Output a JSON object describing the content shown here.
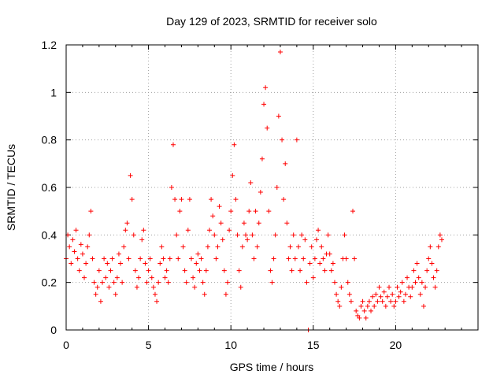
{
  "chart_data": {
    "type": "scatter",
    "title": "Day 129 of 2023, SRMTID for receiver solo",
    "xlabel": "GPS time / hours",
    "ylabel": "SRMTID / TECUs",
    "xlim": [
      0,
      25
    ],
    "ylim": [
      0,
      1.2
    ],
    "xticks": [
      0,
      5,
      10,
      15,
      20
    ],
    "xtick_labels": [
      "0",
      "5",
      "10",
      "15",
      "20"
    ],
    "yticks": [
      0,
      0.2,
      0.4,
      0.6,
      0.8,
      1.0,
      1.2
    ],
    "ytick_labels": [
      "0",
      "0.2",
      "0.4",
      "0.6",
      "0.8",
      "1",
      "1.2"
    ],
    "grid": true,
    "marker": "+",
    "series": [
      {
        "name": "SRMTID",
        "color": "#ff0000",
        "points": [
          [
            0.0,
            0.3
          ],
          [
            0.1,
            0.4
          ],
          [
            0.2,
            0.35
          ],
          [
            0.3,
            0.28
          ],
          [
            0.4,
            0.38
          ],
          [
            0.5,
            0.33
          ],
          [
            0.6,
            0.42
          ],
          [
            0.7,
            0.3
          ],
          [
            0.8,
            0.25
          ],
          [
            0.9,
            0.36
          ],
          [
            1.0,
            0.32
          ],
          [
            1.1,
            0.22
          ],
          [
            1.2,
            0.28
          ],
          [
            1.3,
            0.35
          ],
          [
            1.4,
            0.4
          ],
          [
            1.5,
            0.5
          ],
          [
            1.6,
            0.3
          ],
          [
            1.7,
            0.2
          ],
          [
            1.8,
            0.15
          ],
          [
            1.9,
            0.18
          ],
          [
            2.0,
            0.25
          ],
          [
            2.1,
            0.12
          ],
          [
            2.2,
            0.2
          ],
          [
            2.3,
            0.3
          ],
          [
            2.4,
            0.22
          ],
          [
            2.5,
            0.28
          ],
          [
            2.6,
            0.18
          ],
          [
            2.7,
            0.25
          ],
          [
            2.8,
            0.3
          ],
          [
            2.9,
            0.2
          ],
          [
            3.0,
            0.15
          ],
          [
            3.1,
            0.22
          ],
          [
            3.2,
            0.32
          ],
          [
            3.3,
            0.28
          ],
          [
            3.4,
            0.2
          ],
          [
            3.5,
            0.35
          ],
          [
            3.6,
            0.42
          ],
          [
            3.7,
            0.45
          ],
          [
            3.8,
            0.3
          ],
          [
            3.9,
            0.65
          ],
          [
            4.0,
            0.55
          ],
          [
            4.1,
            0.4
          ],
          [
            4.2,
            0.25
          ],
          [
            4.3,
            0.18
          ],
          [
            4.4,
            0.22
          ],
          [
            4.5,
            0.3
          ],
          [
            4.6,
            0.38
          ],
          [
            4.7,
            0.42
          ],
          [
            4.8,
            0.28
          ],
          [
            4.9,
            0.2
          ],
          [
            5.0,
            0.25
          ],
          [
            5.1,
            0.3
          ],
          [
            5.2,
            0.22
          ],
          [
            5.3,
            0.18
          ],
          [
            5.4,
            0.15
          ],
          [
            5.5,
            0.12
          ],
          [
            5.6,
            0.2
          ],
          [
            5.7,
            0.28
          ],
          [
            5.8,
            0.35
          ],
          [
            5.9,
            0.3
          ],
          [
            6.0,
            0.22
          ],
          [
            6.1,
            0.25
          ],
          [
            6.2,
            0.2
          ],
          [
            6.3,
            0.3
          ],
          [
            6.4,
            0.6
          ],
          [
            6.5,
            0.78
          ],
          [
            6.6,
            0.55
          ],
          [
            6.7,
            0.4
          ],
          [
            6.8,
            0.3
          ],
          [
            6.9,
            0.5
          ],
          [
            7.0,
            0.55
          ],
          [
            7.1,
            0.35
          ],
          [
            7.2,
            0.25
          ],
          [
            7.3,
            0.2
          ],
          [
            7.4,
            0.42
          ],
          [
            7.5,
            0.55
          ],
          [
            7.6,
            0.3
          ],
          [
            7.7,
            0.22
          ],
          [
            7.8,
            0.18
          ],
          [
            7.9,
            0.28
          ],
          [
            8.0,
            0.32
          ],
          [
            8.1,
            0.25
          ],
          [
            8.2,
            0.3
          ],
          [
            8.3,
            0.2
          ],
          [
            8.4,
            0.15
          ],
          [
            8.5,
            0.25
          ],
          [
            8.6,
            0.35
          ],
          [
            8.7,
            0.42
          ],
          [
            8.8,
            0.55
          ],
          [
            8.9,
            0.48
          ],
          [
            9.0,
            0.4
          ],
          [
            9.1,
            0.3
          ],
          [
            9.2,
            0.35
          ],
          [
            9.3,
            0.52
          ],
          [
            9.4,
            0.45
          ],
          [
            9.5,
            0.38
          ],
          [
            9.6,
            0.25
          ],
          [
            9.7,
            0.15
          ],
          [
            9.8,
            0.2
          ],
          [
            9.9,
            0.42
          ],
          [
            10.0,
            0.5
          ],
          [
            10.1,
            0.65
          ],
          [
            10.2,
            0.78
          ],
          [
            10.3,
            0.55
          ],
          [
            10.4,
            0.4
          ],
          [
            10.5,
            0.25
          ],
          [
            10.6,
            0.18
          ],
          [
            10.7,
            0.35
          ],
          [
            10.8,
            0.45
          ],
          [
            10.9,
            0.4
          ],
          [
            11.0,
            0.38
          ],
          [
            11.1,
            0.5
          ],
          [
            11.2,
            0.62
          ],
          [
            11.3,
            0.4
          ],
          [
            11.4,
            0.3
          ],
          [
            11.5,
            0.5
          ],
          [
            11.6,
            0.35
          ],
          [
            11.7,
            0.45
          ],
          [
            11.8,
            0.58
          ],
          [
            11.9,
            0.72
          ],
          [
            12.0,
            0.95
          ],
          [
            12.1,
            1.02
          ],
          [
            12.2,
            0.85
          ],
          [
            12.3,
            0.5
          ],
          [
            12.4,
            0.25
          ],
          [
            12.5,
            0.2
          ],
          [
            12.6,
            0.3
          ],
          [
            12.7,
            0.4
          ],
          [
            12.8,
            0.6
          ],
          [
            12.9,
            0.9
          ],
          [
            13.0,
            1.17
          ],
          [
            13.1,
            0.8
          ],
          [
            13.2,
            0.55
          ],
          [
            13.3,
            0.7
          ],
          [
            13.4,
            0.45
          ],
          [
            13.5,
            0.3
          ],
          [
            13.6,
            0.35
          ],
          [
            13.7,
            0.25
          ],
          [
            13.8,
            0.4
          ],
          [
            13.9,
            0.3
          ],
          [
            14.0,
            0.8
          ],
          [
            14.1,
            0.35
          ],
          [
            14.2,
            0.25
          ],
          [
            14.3,
            0.4
          ],
          [
            14.4,
            0.3
          ],
          [
            14.5,
            0.38
          ],
          [
            14.6,
            0.2
          ],
          [
            14.7,
            0.0
          ],
          [
            14.8,
            0.28
          ],
          [
            14.9,
            0.35
          ],
          [
            15.0,
            0.22
          ],
          [
            15.1,
            0.3
          ],
          [
            15.2,
            0.38
          ],
          [
            15.3,
            0.42
          ],
          [
            15.4,
            0.28
          ],
          [
            15.5,
            0.35
          ],
          [
            15.6,
            0.3
          ],
          [
            15.7,
            0.25
          ],
          [
            15.8,
            0.32
          ],
          [
            15.9,
            0.4
          ],
          [
            16.0,
            0.32
          ],
          [
            16.1,
            0.25
          ],
          [
            16.2,
            0.28
          ],
          [
            16.3,
            0.2
          ],
          [
            16.4,
            0.15
          ],
          [
            16.5,
            0.12
          ],
          [
            16.6,
            0.1
          ],
          [
            16.7,
            0.18
          ],
          [
            16.8,
            0.3
          ],
          [
            16.9,
            0.4
          ],
          [
            17.0,
            0.3
          ],
          [
            17.1,
            0.2
          ],
          [
            17.2,
            0.15
          ],
          [
            17.3,
            0.12
          ],
          [
            17.4,
            0.5
          ],
          [
            17.5,
            0.3
          ],
          [
            17.6,
            0.08
          ],
          [
            17.7,
            0.06
          ],
          [
            17.8,
            0.05
          ],
          [
            17.9,
            0.1
          ],
          [
            18.0,
            0.12
          ],
          [
            18.1,
            0.08
          ],
          [
            18.2,
            0.05
          ],
          [
            18.3,
            0.1
          ],
          [
            18.4,
            0.12
          ],
          [
            18.5,
            0.08
          ],
          [
            18.6,
            0.14
          ],
          [
            18.7,
            0.1
          ],
          [
            18.8,
            0.15
          ],
          [
            18.9,
            0.12
          ],
          [
            19.0,
            0.18
          ],
          [
            19.1,
            0.14
          ],
          [
            19.2,
            0.12
          ],
          [
            19.3,
            0.16
          ],
          [
            19.4,
            0.1
          ],
          [
            19.5,
            0.14
          ],
          [
            19.6,
            0.18
          ],
          [
            19.7,
            0.12
          ],
          [
            19.8,
            0.15
          ],
          [
            19.9,
            0.1
          ],
          [
            20.0,
            0.12
          ],
          [
            20.1,
            0.18
          ],
          [
            20.2,
            0.14
          ],
          [
            20.3,
            0.16
          ],
          [
            20.4,
            0.2
          ],
          [
            20.5,
            0.12
          ],
          [
            20.6,
            0.15
          ],
          [
            20.7,
            0.22
          ],
          [
            20.8,
            0.18
          ],
          [
            20.9,
            0.14
          ],
          [
            21.0,
            0.18
          ],
          [
            21.1,
            0.25
          ],
          [
            21.2,
            0.2
          ],
          [
            21.3,
            0.28
          ],
          [
            21.4,
            0.22
          ],
          [
            21.5,
            0.15
          ],
          [
            21.6,
            0.2
          ],
          [
            21.7,
            0.1
          ],
          [
            21.8,
            0.18
          ],
          [
            21.9,
            0.25
          ],
          [
            22.0,
            0.3
          ],
          [
            22.1,
            0.35
          ],
          [
            22.2,
            0.28
          ],
          [
            22.3,
            0.22
          ],
          [
            22.4,
            0.18
          ],
          [
            22.5,
            0.25
          ],
          [
            22.6,
            0.35
          ],
          [
            22.7,
            0.4
          ],
          [
            22.8,
            0.38
          ]
        ]
      }
    ]
  }
}
